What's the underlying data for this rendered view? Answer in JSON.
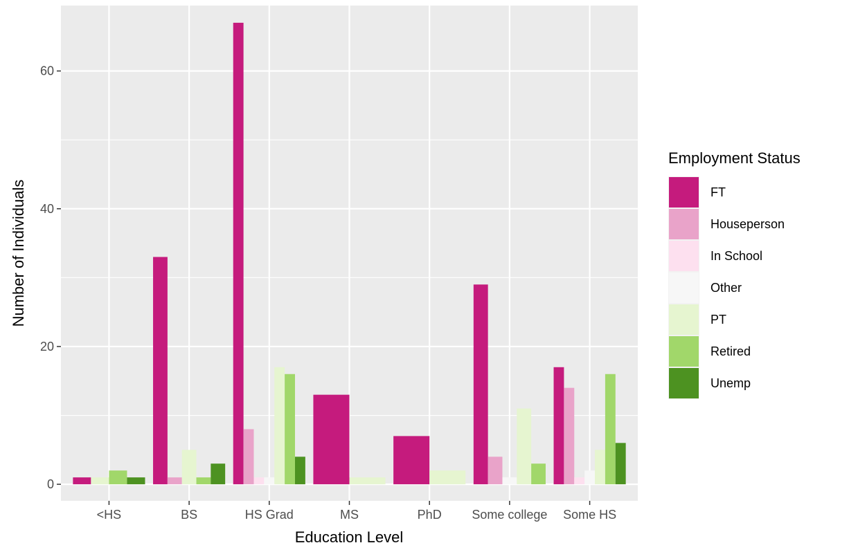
{
  "chart_data": {
    "type": "bar",
    "xlabel": "Education Level",
    "ylabel": "Number of Individuals",
    "ylim": [
      -2.4,
      69.5
    ],
    "y_ticks": [
      0,
      20,
      40,
      60
    ],
    "y_tick_labels": [
      "0",
      "20",
      "40",
      "60"
    ],
    "grid": true,
    "legend": {
      "title": "Employment Status",
      "position": "right"
    },
    "categories": [
      "<HS",
      "BS",
      "HS Grad",
      "MS",
      "PhD",
      "Some college",
      "Some HS"
    ],
    "series": [
      {
        "name": "FT",
        "color": "#C51B7D",
        "values": [
          1,
          33,
          67,
          13,
          7,
          29,
          17
        ]
      },
      {
        "name": "Houseperson",
        "color": "#E9A3C9",
        "values": [
          null,
          1,
          8,
          null,
          null,
          4,
          14
        ]
      },
      {
        "name": "In School",
        "color": "#FDE0EF",
        "values": [
          null,
          null,
          1,
          null,
          null,
          null,
          1
        ]
      },
      {
        "name": "Other",
        "color": "#F7F7F7",
        "values": [
          null,
          null,
          1,
          null,
          null,
          1,
          2
        ]
      },
      {
        "name": "PT",
        "color": "#E6F5D0",
        "values": [
          1,
          5,
          17,
          1,
          2,
          11,
          5
        ]
      },
      {
        "name": "Retired",
        "color": "#A1D76A",
        "values": [
          2,
          1,
          16,
          null,
          null,
          3,
          16
        ]
      },
      {
        "name": "Unemp",
        "color": "#4D9221",
        "values": [
          1,
          3,
          4,
          null,
          null,
          null,
          6
        ]
      }
    ]
  }
}
